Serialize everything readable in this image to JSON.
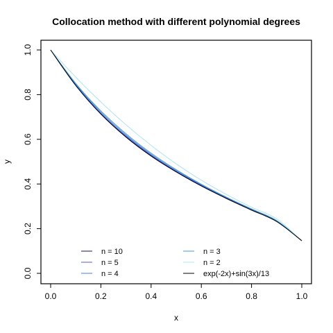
{
  "chart_data": {
    "type": "line",
    "title": "Collocation method with different polynomial degrees",
    "xlabel": "x",
    "ylabel": "y",
    "xlim": [
      0,
      1
    ],
    "ylim": [
      0,
      1
    ],
    "xticks": [
      0.0,
      0.2,
      0.4,
      0.6,
      0.8,
      1.0
    ],
    "yticks": [
      0.0,
      0.2,
      0.4,
      0.6,
      0.8,
      1.0
    ],
    "xtick_labels": [
      "0.0",
      "0.2",
      "0.4",
      "0.6",
      "0.8",
      "1.0"
    ],
    "ytick_labels": [
      "0.0",
      "0.2",
      "0.4",
      "0.6",
      "0.8",
      "1.0"
    ],
    "grid": false,
    "legend_position": "bottom",
    "series": [
      {
        "name": "n = 10",
        "color": "#1a1a4a",
        "x": [
          0,
          0.1,
          0.2,
          0.3,
          0.4,
          0.5,
          0.6,
          0.7,
          0.8,
          0.9,
          1.0
        ],
        "y": [
          1.0,
          0.842,
          0.714,
          0.612,
          0.527,
          0.456,
          0.394,
          0.338,
          0.286,
          0.235,
          0.146
        ]
      },
      {
        "name": "n = 5",
        "color": "#5b57c8",
        "x": [
          0,
          0.1,
          0.2,
          0.3,
          0.4,
          0.5,
          0.6,
          0.7,
          0.8,
          0.9,
          1.0
        ],
        "y": [
          1.0,
          0.843,
          0.716,
          0.614,
          0.529,
          0.457,
          0.395,
          0.339,
          0.287,
          0.236,
          0.146
        ]
      },
      {
        "name": "n = 4",
        "color": "#3f7fe0",
        "x": [
          0,
          0.1,
          0.2,
          0.3,
          0.4,
          0.5,
          0.6,
          0.7,
          0.8,
          0.9,
          1.0
        ],
        "y": [
          1.0,
          0.846,
          0.721,
          0.619,
          0.533,
          0.46,
          0.397,
          0.34,
          0.288,
          0.236,
          0.146
        ]
      },
      {
        "name": "n = 3",
        "color": "#3d9ad9",
        "x": [
          0,
          0.1,
          0.2,
          0.3,
          0.4,
          0.5,
          0.6,
          0.7,
          0.8,
          0.9,
          1.0
        ],
        "y": [
          1.0,
          0.85,
          0.727,
          0.625,
          0.538,
          0.464,
          0.399,
          0.341,
          0.288,
          0.236,
          0.146
        ]
      },
      {
        "name": "n = 2",
        "color": "#aee3f2",
        "x": [
          0,
          0.1,
          0.2,
          0.3,
          0.4,
          0.5,
          0.6,
          0.7,
          0.8,
          0.9,
          1.0
        ],
        "y": [
          1.0,
          0.878,
          0.767,
          0.665,
          0.573,
          0.49,
          0.417,
          0.353,
          0.296,
          0.244,
          0.146
        ]
      },
      {
        "name": "exp(-2x)+sin(3x)/13",
        "color": "#000000",
        "x": [
          0,
          0.1,
          0.2,
          0.3,
          0.4,
          0.5,
          0.6,
          0.7,
          0.8,
          0.9,
          1.0
        ],
        "y": [
          1.0,
          0.841,
          0.713,
          0.61,
          0.525,
          0.454,
          0.391,
          0.335,
          0.283,
          0.232,
          0.146
        ]
      }
    ]
  }
}
